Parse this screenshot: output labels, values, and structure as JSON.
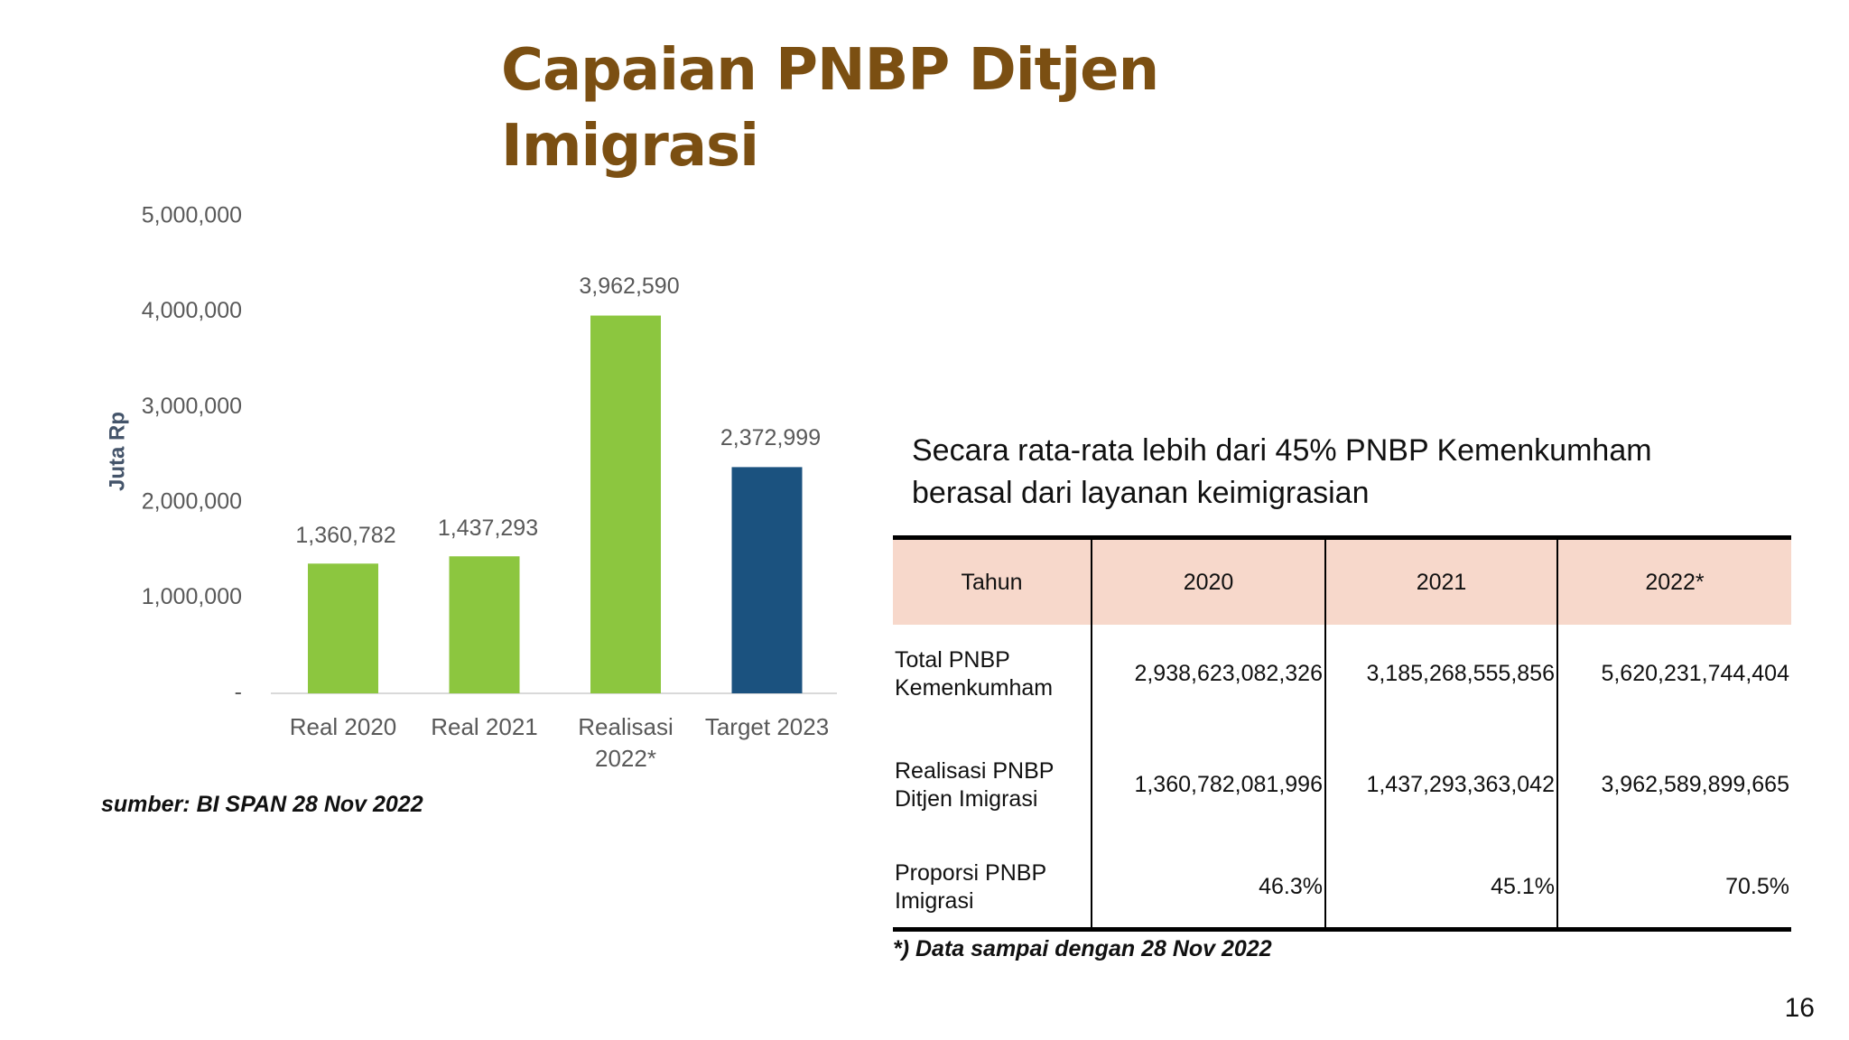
{
  "title": "Capaian PNBP Ditjen Imigrasi",
  "chart_data": {
    "type": "bar",
    "y_label": "Juta Rp",
    "categories": [
      "Real 2020",
      "Real 2021",
      "Realisasi 2022*",
      "Target 2023"
    ],
    "values": [
      1360782,
      1437293,
      3962590,
      2372999
    ],
    "value_labels": [
      "1,360,782",
      "1,437,293",
      "3,962,590",
      "2,372,999"
    ],
    "colors": [
      "#8cc63f",
      "#8cc63f",
      "#8cc63f",
      "#1b527f"
    ],
    "ylim": [
      0,
      5000000
    ],
    "yticks": [
      {
        "value": 0,
        "label": "-"
      },
      {
        "value": 1000000,
        "label": "1,000,000"
      },
      {
        "value": 2000000,
        "label": "2,000,000"
      },
      {
        "value": 3000000,
        "label": "3,000,000"
      },
      {
        "value": 4000000,
        "label": "4,000,000"
      },
      {
        "value": 5000000,
        "label": "5,000,000"
      }
    ],
    "grid": false,
    "source": "sumber: BI SPAN 28 Nov 2022"
  },
  "summary": "Secara rata-rata lebih dari 45% PNBP Kemenkumham berasal dari layanan keimigrasian",
  "table": {
    "header": [
      "Tahun",
      "2020",
      "2021",
      "2022*"
    ],
    "rows": [
      [
        "Total PNBP Kemenkumham",
        "2,938,623,082,326",
        "3,185,268,555,856",
        "5,620,231,744,404"
      ],
      [
        "Realisasi PNBP Ditjen Imigrasi",
        "1,360,782,081,996",
        "1,437,293,363,042",
        "3,962,589,899,665"
      ],
      [
        "Proporsi PNBP Imigrasi",
        "46.3%",
        "45.1%",
        "70.5%"
      ]
    ]
  },
  "footnote": "*) Data sampai dengan 28 Nov 2022",
  "page_number": "16"
}
